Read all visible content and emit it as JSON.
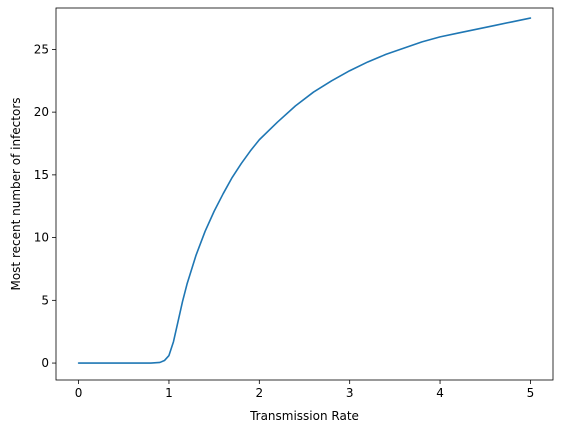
{
  "chart_data": {
    "type": "line",
    "title": "",
    "xlabel": "Transmission Rate",
    "ylabel": "Most recent number of infectors",
    "xlim": [
      -0.25,
      5.25
    ],
    "ylim": [
      -1.35,
      28.3
    ],
    "xticks": [
      0,
      1,
      2,
      3,
      4,
      5
    ],
    "yticks": [
      0,
      5,
      10,
      15,
      20,
      25
    ],
    "xtick_labels": [
      "0",
      "1",
      "2",
      "3",
      "4",
      "5"
    ],
    "ytick_labels": [
      "0",
      "5",
      "10",
      "15",
      "20",
      "25"
    ],
    "grid": false,
    "series": [
      {
        "color": "#1f77b4",
        "x": [
          0,
          0.2,
          0.4,
          0.6,
          0.8,
          0.9,
          0.95,
          1.0,
          1.05,
          1.1,
          1.15,
          1.2,
          1.3,
          1.4,
          1.5,
          1.6,
          1.7,
          1.8,
          1.9,
          2.0,
          2.2,
          2.4,
          2.6,
          2.8,
          3.0,
          3.2,
          3.4,
          3.6,
          3.8,
          4.0,
          4.2,
          4.4,
          4.6,
          4.8,
          5.0
        ],
        "y": [
          0,
          0,
          0,
          0,
          0,
          0.05,
          0.2,
          0.6,
          1.7,
          3.3,
          4.9,
          6.3,
          8.6,
          10.5,
          12.1,
          13.5,
          14.8,
          15.9,
          16.9,
          17.8,
          19.2,
          20.5,
          21.6,
          22.5,
          23.3,
          24.0,
          24.6,
          25.1,
          25.6,
          26.0,
          26.3,
          26.6,
          26.9,
          27.2,
          27.5
        ]
      }
    ]
  }
}
